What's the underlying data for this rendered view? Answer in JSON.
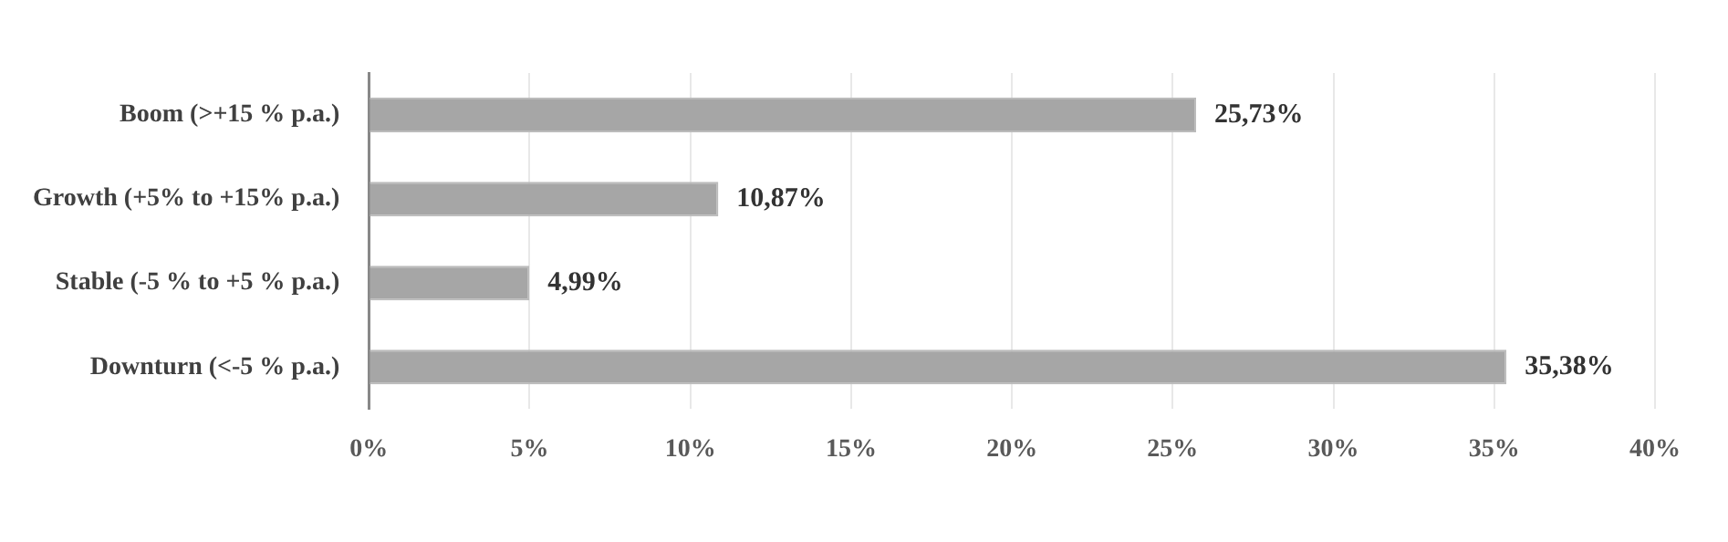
{
  "chart_data": {
    "type": "bar",
    "orientation": "horizontal",
    "categories": [
      "Boom (>+15 % p.a.)",
      "Growth (+5% to +15% p.a.)",
      "Stable (-5 % to +5 % p.a.)",
      "Downturn (<-5 % p.a.)"
    ],
    "values": [
      25.73,
      10.87,
      4.99,
      35.38
    ],
    "value_labels": [
      "25,73%",
      "10,87%",
      "4,99%",
      "35,38%"
    ],
    "color": "#a6a6a6",
    "xlim": [
      0,
      40
    ],
    "xticks": [
      {
        "value": 0,
        "label": "0%"
      },
      {
        "value": 5,
        "label": "5%"
      },
      {
        "value": 10,
        "label": "10%"
      },
      {
        "value": 15,
        "label": "15%"
      },
      {
        "value": 20,
        "label": "20%"
      },
      {
        "value": 25,
        "label": "25%"
      },
      {
        "value": 30,
        "label": "30%"
      },
      {
        "value": 35,
        "label": "35%"
      },
      {
        "value": 40,
        "label": "40%"
      }
    ],
    "grid": "x",
    "legend": false
  }
}
